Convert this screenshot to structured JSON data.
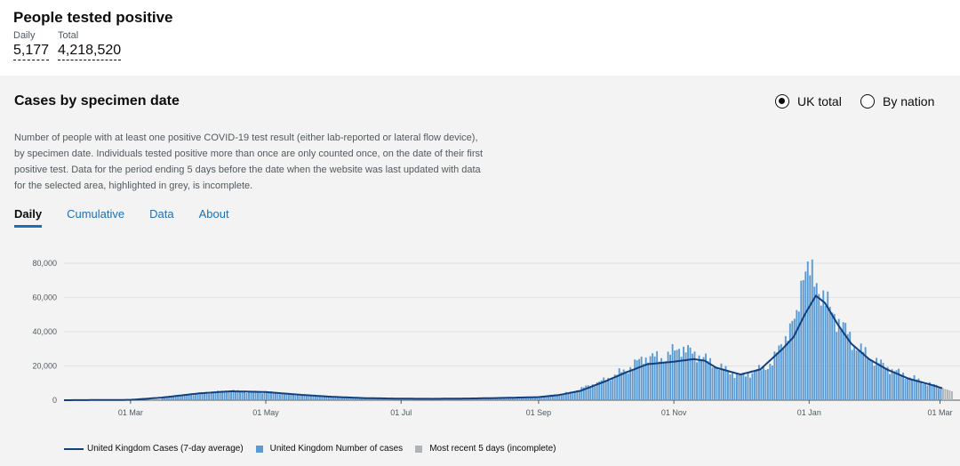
{
  "header": {
    "title": "People tested positive",
    "daily_label": "Daily",
    "daily_value": "5,177",
    "total_label": "Total",
    "total_value": "4,218,520"
  },
  "card": {
    "title": "Cases by specimen date",
    "radio_options": [
      {
        "label": "UK total",
        "selected": true
      },
      {
        "label": "By nation",
        "selected": false
      }
    ],
    "description": "Number of people with at least one positive COVID-19 test result (either lab-reported or lateral flow device), by specimen date. Individuals tested positive more than once are only counted once, on the date of their first positive test. Data for the period ending 5 days before the date when the website was last updated with data for the selected area, highlighted in grey, is incomplete.",
    "tabs": [
      {
        "label": "Daily",
        "active": true
      },
      {
        "label": "Cumulative",
        "active": false
      },
      {
        "label": "Data",
        "active": false
      },
      {
        "label": "About",
        "active": false
      }
    ]
  },
  "chart_data": {
    "type": "bar",
    "x_start": "2020-01-31",
    "x_end": "2021-03-06",
    "ylim": [
      0,
      80000
    ],
    "y_ticks": [
      0,
      20000,
      40000,
      60000,
      80000
    ],
    "y_tick_labels": [
      "0",
      "20,000",
      "40,000",
      "60,000",
      "80,000"
    ],
    "x_ticks": [
      "2020-03-01",
      "2020-05-01",
      "2020-07-01",
      "2020-09-01",
      "2020-11-01",
      "2021-01-01",
      "2021-03-01"
    ],
    "x_tick_labels": [
      "01 Mar",
      "01 May",
      "01 Jul",
      "01 Sep",
      "01 Nov",
      "01 Jan",
      "01 Mar"
    ],
    "grid": true,
    "legend_position": "bottom",
    "series": [
      {
        "name": "United Kingdom Cases (7-day average)",
        "color": "#12407f",
        "points": [
          [
            "2020-01-31",
            0
          ],
          [
            "2020-03-01",
            200
          ],
          [
            "2020-03-15",
            1500
          ],
          [
            "2020-04-01",
            4000
          ],
          [
            "2020-04-15",
            5200
          ],
          [
            "2020-05-01",
            4800
          ],
          [
            "2020-05-15",
            3300
          ],
          [
            "2020-06-01",
            1900
          ],
          [
            "2020-06-15",
            1200
          ],
          [
            "2020-07-01",
            900
          ],
          [
            "2020-07-15",
            800
          ],
          [
            "2020-08-01",
            1000
          ],
          [
            "2020-08-15",
            1300
          ],
          [
            "2020-09-01",
            1800
          ],
          [
            "2020-09-10",
            3000
          ],
          [
            "2020-09-20",
            5500
          ],
          [
            "2020-10-01",
            11000
          ],
          [
            "2020-10-10",
            16000
          ],
          [
            "2020-10-20",
            21000
          ],
          [
            "2020-11-01",
            22500
          ],
          [
            "2020-11-10",
            24000
          ],
          [
            "2020-11-15",
            23000
          ],
          [
            "2020-11-20",
            19000
          ],
          [
            "2020-12-01",
            15000
          ],
          [
            "2020-12-10",
            18000
          ],
          [
            "2020-12-20",
            30000
          ],
          [
            "2020-12-25",
            37000
          ],
          [
            "2020-12-30",
            50000
          ],
          [
            "2021-01-04",
            61000
          ],
          [
            "2021-01-08",
            57000
          ],
          [
            "2021-01-14",
            44000
          ],
          [
            "2021-01-20",
            33000
          ],
          [
            "2021-01-28",
            24000
          ],
          [
            "2021-02-05",
            18000
          ],
          [
            "2021-02-15",
            12500
          ],
          [
            "2021-02-25",
            9000
          ],
          [
            "2021-03-02",
            7000
          ]
        ]
      },
      {
        "name": "United Kingdom Number of cases",
        "color": "#5b9bd5",
        "points": [
          [
            "2020-03-15",
            1400
          ],
          [
            "2020-04-01",
            4000
          ],
          [
            "2020-04-15",
            5400
          ],
          [
            "2020-05-01",
            4600
          ],
          [
            "2020-05-15",
            3100
          ],
          [
            "2020-06-01",
            1800
          ],
          [
            "2020-07-01",
            900
          ],
          [
            "2020-08-01",
            1000
          ],
          [
            "2020-09-01",
            1900
          ],
          [
            "2020-09-15",
            4500
          ],
          [
            "2020-10-01",
            12000
          ],
          [
            "2020-10-12",
            19000
          ],
          [
            "2020-10-18",
            25000
          ],
          [
            "2020-10-28",
            25000
          ],
          [
            "2020-11-03",
            31000
          ],
          [
            "2020-11-10",
            27000
          ],
          [
            "2020-11-12",
            26500
          ],
          [
            "2020-11-17",
            22000
          ],
          [
            "2020-11-25",
            17000
          ],
          [
            "2020-12-01",
            14000
          ],
          [
            "2020-12-10",
            18000
          ],
          [
            "2020-12-15",
            22000
          ],
          [
            "2020-12-22",
            40000
          ],
          [
            "2020-12-26",
            47000
          ],
          [
            "2020-12-29",
            81000
          ],
          [
            "2021-01-02",
            70000
          ],
          [
            "2021-01-05",
            67000
          ],
          [
            "2021-01-10",
            52000
          ],
          [
            "2021-01-14",
            47000
          ],
          [
            "2021-01-20",
            34000
          ],
          [
            "2021-01-26",
            27000
          ],
          [
            "2021-02-02",
            21000
          ],
          [
            "2021-02-10",
            16000
          ],
          [
            "2021-02-20",
            11000
          ],
          [
            "2021-03-01",
            7500
          ]
        ]
      },
      {
        "name": "Most recent 5 days (incomplete)",
        "color": "#b1b4b6",
        "points": [
          [
            "2021-03-02",
            7000
          ],
          [
            "2021-03-03",
            6500
          ],
          [
            "2021-03-04",
            6200
          ],
          [
            "2021-03-05",
            5700
          ],
          [
            "2021-03-06",
            5177
          ]
        ]
      }
    ]
  }
}
